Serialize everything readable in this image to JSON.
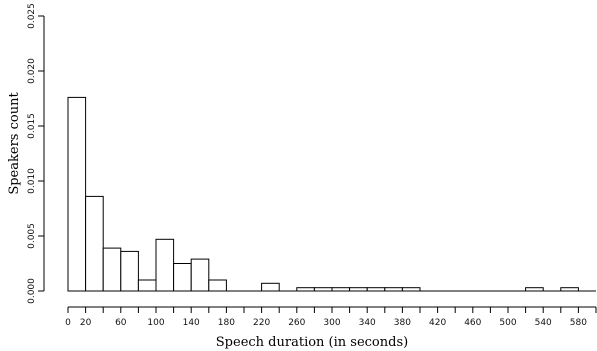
{
  "chart_data": {
    "type": "bar",
    "xlabel": "Speech duration (in seconds)",
    "ylabel": "Speakers count",
    "bin_width": 20,
    "xlim": [
      0,
      600
    ],
    "ylim": [
      0,
      0.025
    ],
    "x_ticks": [
      0,
      20,
      60,
      100,
      140,
      180,
      220,
      260,
      300,
      340,
      380,
      420,
      460,
      500,
      540,
      580
    ],
    "y_ticks": [
      "0.000",
      "0.005",
      "0.010",
      "0.015",
      "0.020",
      "0.025"
    ],
    "bins": [
      {
        "start": 0,
        "end": 20,
        "value": 0.0176
      },
      {
        "start": 20,
        "end": 40,
        "value": 0.0086
      },
      {
        "start": 40,
        "end": 60,
        "value": 0.0039
      },
      {
        "start": 60,
        "end": 80,
        "value": 0.0036
      },
      {
        "start": 80,
        "end": 100,
        "value": 0.001
      },
      {
        "start": 100,
        "end": 120,
        "value": 0.0047
      },
      {
        "start": 120,
        "end": 140,
        "value": 0.0025
      },
      {
        "start": 140,
        "end": 160,
        "value": 0.0029
      },
      {
        "start": 160,
        "end": 180,
        "value": 0.001
      },
      {
        "start": 180,
        "end": 200,
        "value": 0
      },
      {
        "start": 200,
        "end": 220,
        "value": 0
      },
      {
        "start": 220,
        "end": 240,
        "value": 0.0007
      },
      {
        "start": 240,
        "end": 260,
        "value": 0
      },
      {
        "start": 260,
        "end": 280,
        "value": 0.0003
      },
      {
        "start": 280,
        "end": 300,
        "value": 0.0003
      },
      {
        "start": 300,
        "end": 320,
        "value": 0.0003
      },
      {
        "start": 320,
        "end": 340,
        "value": 0.0003
      },
      {
        "start": 340,
        "end": 360,
        "value": 0.0003
      },
      {
        "start": 360,
        "end": 380,
        "value": 0.0003
      },
      {
        "start": 380,
        "end": 400,
        "value": 0.0003
      },
      {
        "start": 400,
        "end": 420,
        "value": 0
      },
      {
        "start": 420,
        "end": 440,
        "value": 0
      },
      {
        "start": 440,
        "end": 460,
        "value": 0
      },
      {
        "start": 460,
        "end": 480,
        "value": 0
      },
      {
        "start": 480,
        "end": 500,
        "value": 0
      },
      {
        "start": 500,
        "end": 520,
        "value": 0
      },
      {
        "start": 520,
        "end": 540,
        "value": 0.0003
      },
      {
        "start": 540,
        "end": 560,
        "value": 0
      },
      {
        "start": 560,
        "end": 580,
        "value": 0.0003
      },
      {
        "start": 580,
        "end": 600,
        "value": 0
      }
    ],
    "grid": false
  }
}
